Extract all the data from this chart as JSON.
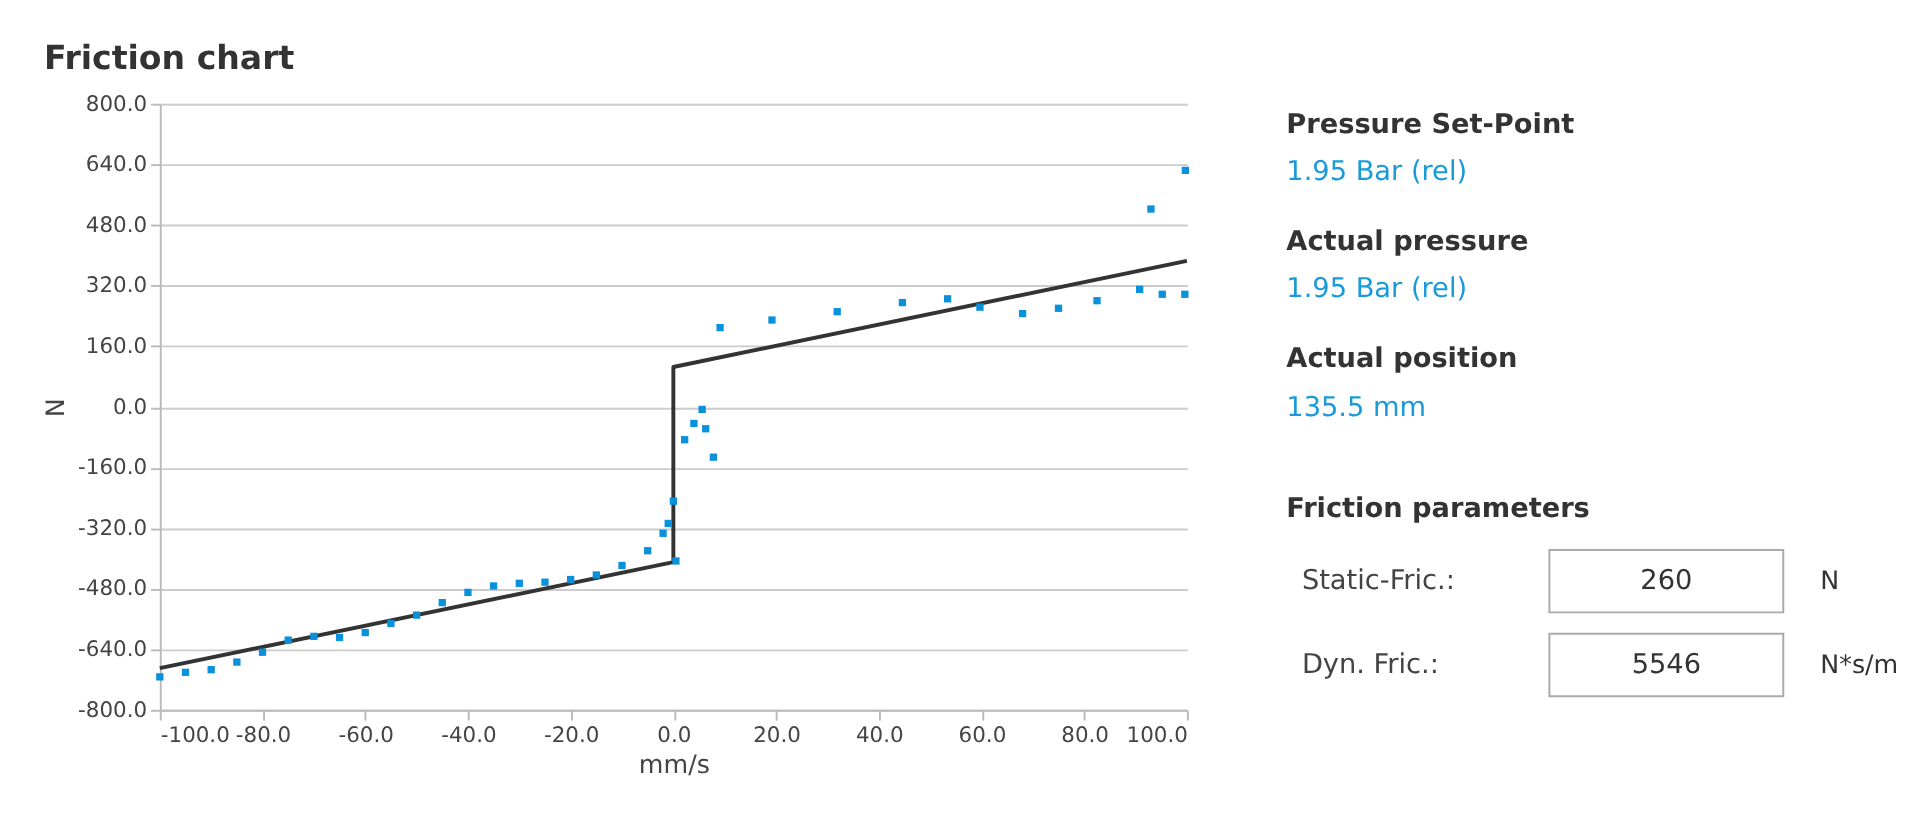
{
  "chart_data": [
    {
      "type": "scatter",
      "title": "Friction chart",
      "xlabel": "mm/s",
      "ylabel": "N",
      "xlim": [
        -100,
        100
      ],
      "xticks": [
        {
          "value": -100,
          "label": "-100.0"
        },
        {
          "value": -80,
          "label": "-80.0"
        },
        {
          "value": -60,
          "label": "-60.0"
        },
        {
          "value": -40,
          "label": "-40.0"
        },
        {
          "value": -20,
          "label": "-20.0"
        },
        {
          "value": 0,
          "label": "0.0"
        },
        {
          "value": 20,
          "label": "20.0"
        },
        {
          "value": 40,
          "label": "40.0"
        },
        {
          "value": 60,
          "label": "60.0"
        },
        {
          "value": 80,
          "label": "80.0"
        },
        {
          "value": 100,
          "label": "100.0"
        }
      ],
      "ylim": [
        -800,
        800
      ],
      "yticks": [
        {
          "value": -800,
          "label": "-800.0"
        },
        {
          "value": -640,
          "label": "-640.0"
        },
        {
          "value": -480,
          "label": "-480.0"
        },
        {
          "value": -320,
          "label": "-320.0"
        },
        {
          "value": -160,
          "label": "-160.0"
        },
        {
          "value": 0,
          "label": "0.0"
        },
        {
          "value": 160,
          "label": "160.0"
        },
        {
          "value": 320,
          "label": "320.0"
        },
        {
          "value": 480,
          "label": "480.0"
        },
        {
          "value": 640,
          "label": "640.0"
        },
        {
          "value": 800,
          "label": "800.0"
        }
      ],
      "grid": "y",
      "marker": "square",
      "series": [
        {
          "color": "#0a91dc",
          "x": [
            -100,
            -95,
            -90,
            -85,
            -80,
            -75,
            -70,
            -65,
            -60,
            -55,
            -50,
            -45,
            -40,
            -35,
            -30,
            -25,
            -20,
            -15,
            -10,
            -5,
            -2,
            -1,
            0,
            0.5,
            2.2,
            4,
            5.6,
            6.3,
            7.8,
            9.1,
            19.2,
            31.9,
            44.6,
            53.4,
            59.7,
            68,
            75,
            82.5,
            90.8,
            93,
            95.2,
            99.6,
            99.7
          ],
          "values": [
            -713,
            -701,
            -694,
            -674,
            -648,
            -616,
            -606,
            -609,
            -596,
            -572,
            -550,
            -517,
            -490,
            -473,
            -466,
            -463,
            -456,
            -444,
            -419,
            -380,
            -334,
            -308,
            -249,
            -407,
            -87,
            -44,
            -7,
            -58,
            -133,
            209,
            229,
            251,
            275,
            285,
            263,
            246,
            260,
            280,
            310,
            522,
            297,
            297,
            624
          ]
        },
        {
          "type": "line",
          "color": "#333333",
          "line_style": "solid",
          "marker": "none",
          "x": [
            -100,
            0,
            0,
            100
          ],
          "values": [
            -690,
            -410,
            105,
            385
          ]
        }
      ]
    },
    {
      "type": "other",
      "annotations": [
        "Pressure Set-Point",
        "1.95 Bar (rel)",
        "Actual pressure",
        "1.95 Bar (rel)",
        "Actual position",
        "135.5 mm",
        "Friction parameters",
        "Static-Fric.:",
        "260",
        "N",
        "Dyn. Fric.:",
        "5546",
        "N*s/m"
      ]
    }
  ]
}
